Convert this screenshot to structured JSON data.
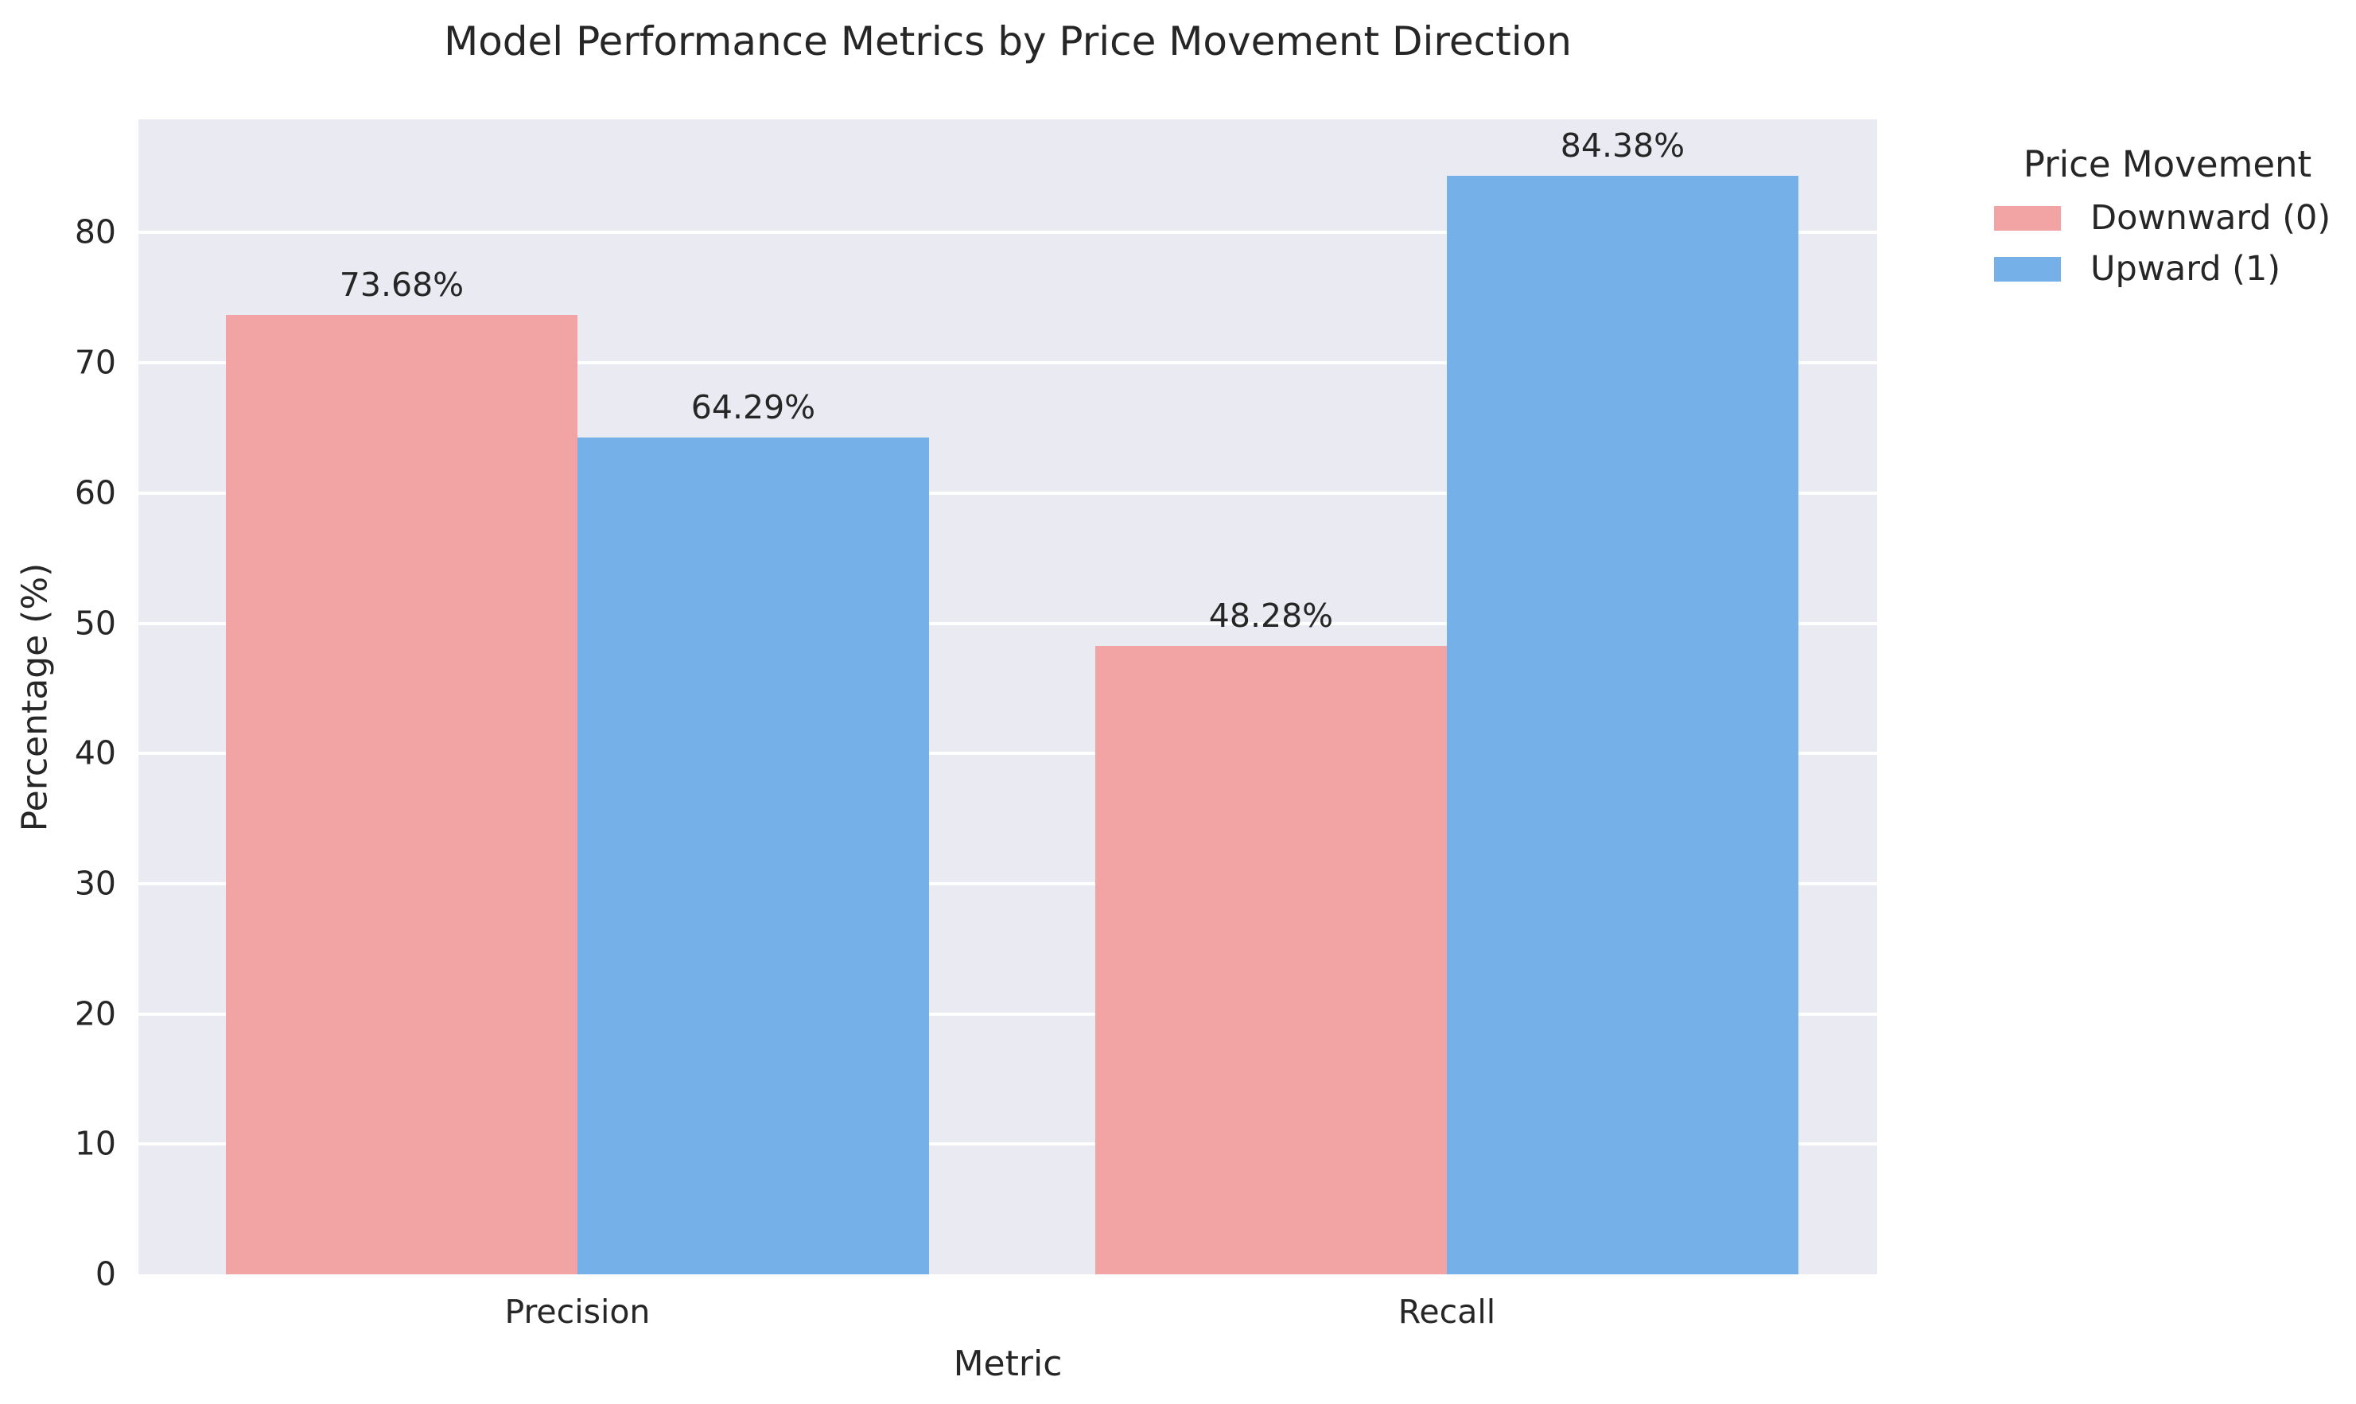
{
  "chart_data": {
    "type": "bar",
    "grouped": true,
    "title": "Model Performance Metrics by Price Movement Direction",
    "xlabel": "Metric",
    "ylabel": "Percentage (%)",
    "categories": [
      "Precision",
      "Recall"
    ],
    "series": [
      {
        "name": "Downward (0)",
        "color": "#F2A4A4",
        "values": [
          73.68,
          48.28
        ],
        "value_labels": [
          "73.68%",
          "48.28%"
        ]
      },
      {
        "name": "Upward (1)",
        "color": "#75B1E8",
        "values": [
          64.29,
          84.38
        ],
        "value_labels": [
          "64.29%",
          "84.38%"
        ]
      }
    ],
    "yticks": [
      0,
      10,
      20,
      30,
      40,
      50,
      60,
      70,
      80
    ],
    "ylim": [
      0,
      88.7
    ],
    "grid": "horizontal white gridlines on",
    "legend": {
      "title": "Price Movement",
      "position": "outside right, top"
    }
  },
  "colors": {
    "plot_background": "#EAEAF2",
    "gridline": "#FFFFFF",
    "figure_background": "#FFFFFF",
    "text": "#262626"
  }
}
